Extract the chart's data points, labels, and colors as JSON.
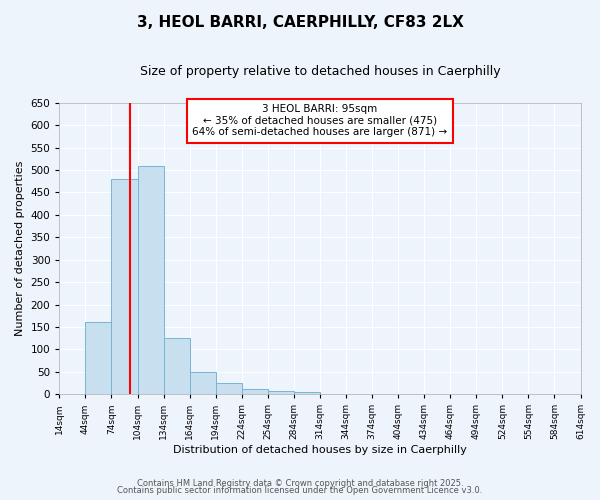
{
  "title": "3, HEOL BARRI, CAERPHILLY, CF83 2LX",
  "subtitle": "Size of property relative to detached houses in Caerphilly",
  "xlabel": "Distribution of detached houses by size in Caerphilly",
  "ylabel": "Number of detached properties",
  "bar_edges": [
    14,
    44,
    74,
    104,
    134,
    164,
    194,
    224,
    254,
    284,
    314,
    344,
    374,
    404,
    434,
    464,
    494,
    524,
    554,
    584,
    614
  ],
  "bar_heights": [
    0,
    160,
    480,
    510,
    125,
    50,
    25,
    12,
    8,
    5,
    0,
    0,
    0,
    0,
    0,
    0,
    0,
    0,
    0,
    0
  ],
  "bar_color": "#c8dff0",
  "bar_edgecolor": "#7ab3d4",
  "ylim": [
    0,
    650
  ],
  "yticks": [
    0,
    50,
    100,
    150,
    200,
    250,
    300,
    350,
    400,
    450,
    500,
    550,
    600,
    650
  ],
  "red_line_x": 95,
  "annotation_line1": "3 HEOL BARRI: 95sqm",
  "annotation_line2": "← 35% of detached houses are smaller (475)",
  "annotation_line3": "64% of semi-detached houses are larger (871) →",
  "footer1": "Contains HM Land Registry data © Crown copyright and database right 2025.",
  "footer2": "Contains public sector information licensed under the Open Government Licence v3.0.",
  "background_color": "#eef4fb",
  "tick_labels": [
    "14sqm",
    "44sqm",
    "74sqm",
    "104sqm",
    "134sqm",
    "164sqm",
    "194sqm",
    "224sqm",
    "254sqm",
    "284sqm",
    "314sqm",
    "344sqm",
    "374sqm",
    "404sqm",
    "434sqm",
    "464sqm",
    "494sqm",
    "524sqm",
    "554sqm",
    "584sqm",
    "614sqm"
  ],
  "grid_color": "#ffffff",
  "title_fontsize": 11,
  "subtitle_fontsize": 9
}
